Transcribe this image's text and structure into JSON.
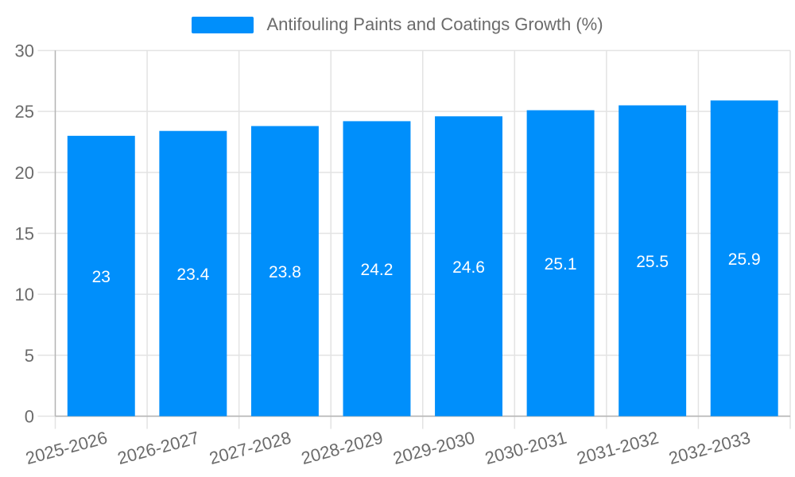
{
  "chart_data": {
    "type": "bar",
    "title": "Antifouling Paints and Coatings Growth (%)",
    "categories": [
      "2025-2026",
      "2026-2027",
      "2027-2028",
      "2028-2029",
      "2029-2030",
      "2030-2031",
      "2031-2032",
      "2032-2033"
    ],
    "series": [
      {
        "name": "Antifouling Paints and Coatings Growth (%)",
        "values": [
          23,
          23.4,
          23.8,
          24.2,
          24.6,
          25.1,
          25.5,
          25.9
        ]
      }
    ],
    "data_labels": [
      "23",
      "23.4",
      "23.8",
      "24.2",
      "24.6",
      "25.1",
      "25.5",
      "25.9"
    ],
    "xlabel": "",
    "ylabel": "",
    "ylim": [
      0,
      30
    ],
    "yticks": [
      0,
      5,
      10,
      15,
      20,
      25,
      30
    ],
    "grid": true,
    "legend_position": "top",
    "colors": {
      "bar": "#008FFB",
      "grid_line": "#e3e3e3",
      "axis_line": "#b3b3b3",
      "axis_label": "#6b6b6b",
      "data_label": "#ffffff",
      "background": "#ffffff"
    }
  }
}
